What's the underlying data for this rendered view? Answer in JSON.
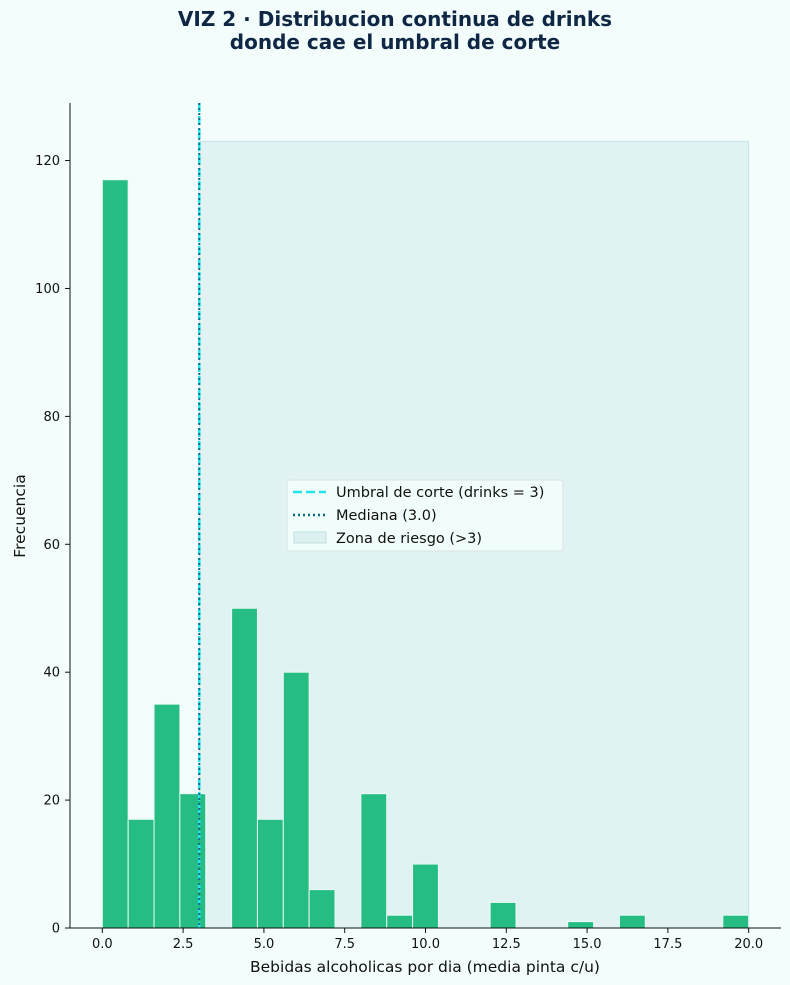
{
  "page": {
    "title_line1": "VIZ 2 · Distribucion continua de drinks",
    "title_line2": "donde cae el umbral de corte"
  },
  "colors": {
    "background": "#f3fefc",
    "bar": "#25bd83",
    "bar_edge": "#e8fbf4",
    "threshold_line": "#22e5ec",
    "median_line": "#0b6b86",
    "risk_zone": "#cfe9ea",
    "title": "#0f2744"
  },
  "chart_data": {
    "type": "bar",
    "title": "VIZ 2 · Distribucion continua de drinks donde cae el umbral de corte",
    "xlabel": "Bebidas alcoholicas por dia (media pinta c/u)",
    "ylabel": "Frecuencia",
    "xlim": [
      -1,
      21
    ],
    "ylim": [
      0,
      129
    ],
    "grid": false,
    "legend_position": "center",
    "x_ticks": [
      "0.0",
      "2.5",
      "5.0",
      "7.5",
      "10.0",
      "12.5",
      "15.0",
      "17.5",
      "20.0"
    ],
    "y_ticks": [
      "0",
      "20",
      "40",
      "60",
      "80",
      "100",
      "120"
    ],
    "bins": [
      {
        "x0": 0.0,
        "x1": 0.8,
        "count": 117
      },
      {
        "x0": 0.8,
        "x1": 1.6,
        "count": 17
      },
      {
        "x0": 1.6,
        "x1": 2.4,
        "count": 35
      },
      {
        "x0": 2.4,
        "x1": 3.2,
        "count": 21
      },
      {
        "x0": 3.2,
        "x1": 4.0,
        "count": 0
      },
      {
        "x0": 4.0,
        "x1": 4.8,
        "count": 50
      },
      {
        "x0": 4.8,
        "x1": 5.6,
        "count": 17
      },
      {
        "x0": 5.6,
        "x1": 6.4,
        "count": 40
      },
      {
        "x0": 6.4,
        "x1": 7.2,
        "count": 6
      },
      {
        "x0": 7.2,
        "x1": 8.0,
        "count": 0
      },
      {
        "x0": 8.0,
        "x1": 8.8,
        "count": 21
      },
      {
        "x0": 8.8,
        "x1": 9.6,
        "count": 2
      },
      {
        "x0": 9.6,
        "x1": 10.4,
        "count": 10
      },
      {
        "x0": 10.4,
        "x1": 11.2,
        "count": 0
      },
      {
        "x0": 11.2,
        "x1": 12.0,
        "count": 0
      },
      {
        "x0": 12.0,
        "x1": 12.8,
        "count": 4
      },
      {
        "x0": 12.8,
        "x1": 13.6,
        "count": 0
      },
      {
        "x0": 13.6,
        "x1": 14.4,
        "count": 0
      },
      {
        "x0": 14.4,
        "x1": 15.2,
        "count": 1
      },
      {
        "x0": 15.2,
        "x1": 16.0,
        "count": 0
      },
      {
        "x0": 16.0,
        "x1": 16.8,
        "count": 2
      },
      {
        "x0": 16.8,
        "x1": 17.6,
        "count": 0
      },
      {
        "x0": 17.6,
        "x1": 18.4,
        "count": 0
      },
      {
        "x0": 18.4,
        "x1": 19.2,
        "count": 0
      },
      {
        "x0": 19.2,
        "x1": 20.0,
        "count": 2
      }
    ],
    "threshold": {
      "x": 3,
      "label": "Umbral de corte (drinks = 3)"
    },
    "median": {
      "x": 3.0,
      "label": "Mediana (3.0)"
    },
    "risk_zone": {
      "x0": 3,
      "x1": 20,
      "y_top": 123,
      "label": "Zona de riesgo (>3)"
    }
  }
}
